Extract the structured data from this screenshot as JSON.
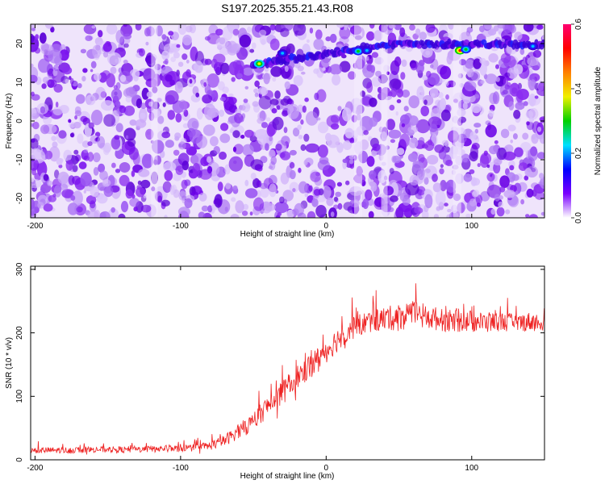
{
  "title": "S197.2025.355.21.43.R08",
  "chart_data": [
    {
      "type": "heatmap",
      "title": "S197.2025.355.21.43.R08",
      "xlabel": "Height of straight line (km)",
      "ylabel": "Frequency (Hz)",
      "xlim": [
        -203,
        150
      ],
      "ylim": [
        -25,
        25
      ],
      "xticks": [
        -200,
        -100,
        0,
        100
      ],
      "yticks": [
        -20,
        -10,
        0,
        10,
        20
      ],
      "colorbar": {
        "label": "Normalized spectral amplitude",
        "range": [
          0.0,
          0.6
        ],
        "ticks": [
          "0.0",
          "0.2",
          "0.4",
          "0.6"
        ],
        "colors": [
          "#ffffff",
          "#7a00ff",
          "#0000ff",
          "#00e0ff",
          "#00d000",
          "#f0f000",
          "#ff8000",
          "#ff0000",
          "#ff0070"
        ]
      },
      "signal_band": {
        "frequency_start_hz": 14.5,
        "frequency_end_hz": 19.8,
        "x_start_km": -50,
        "x_end_km": 150,
        "peaks": [
          {
            "x": -46,
            "y": 14.8,
            "amplitude": 0.45
          },
          {
            "x": -30,
            "y": 17.5,
            "amplitude": 0.22
          },
          {
            "x": 22,
            "y": 18.0,
            "amplitude": 0.32
          },
          {
            "x": 28,
            "y": 18.2,
            "amplitude": 0.28
          },
          {
            "x": 92,
            "y": 18.2,
            "amplitude": 0.55
          },
          {
            "x": 96,
            "y": 18.5,
            "amplitude": 0.3
          },
          {
            "x": 142,
            "y": 19.3,
            "amplitude": 0.22
          }
        ]
      },
      "grid": false
    },
    {
      "type": "line",
      "xlabel": "Height of straight line (km)",
      "ylabel": "SNR (10 * v/v)",
      "xlim": [
        -203,
        150
      ],
      "ylim": [
        0,
        305
      ],
      "xticks": [
        -200,
        -100,
        0,
        100
      ],
      "yticks": [
        0,
        100,
        200,
        300
      ],
      "series": [
        {
          "name": "SNR",
          "color": "#ee2222",
          "x": [
            -203,
            -180,
            -160,
            -140,
            -120,
            -100,
            -90,
            -80,
            -70,
            -60,
            -50,
            -40,
            -30,
            -20,
            -10,
            0,
            10,
            20,
            30,
            40,
            50,
            60,
            70,
            80,
            90,
            100,
            110,
            120,
            130,
            140,
            150
          ],
          "values": [
            15,
            15,
            16,
            16,
            17,
            18,
            19,
            22,
            30,
            45,
            60,
            85,
            105,
            130,
            150,
            172,
            195,
            210,
            218,
            222,
            225,
            228,
            225,
            220,
            218,
            218,
            216,
            218,
            215,
            218,
            215
          ],
          "noise_amplitude": [
            10,
            10,
            10,
            10,
            11,
            11,
            12,
            14,
            18,
            24,
            30,
            34,
            38,
            40,
            40,
            40,
            38,
            36,
            36,
            38,
            42,
            45,
            40,
            36,
            34,
            34,
            32,
            30,
            30,
            30,
            30
          ]
        }
      ],
      "grid": false
    }
  ]
}
